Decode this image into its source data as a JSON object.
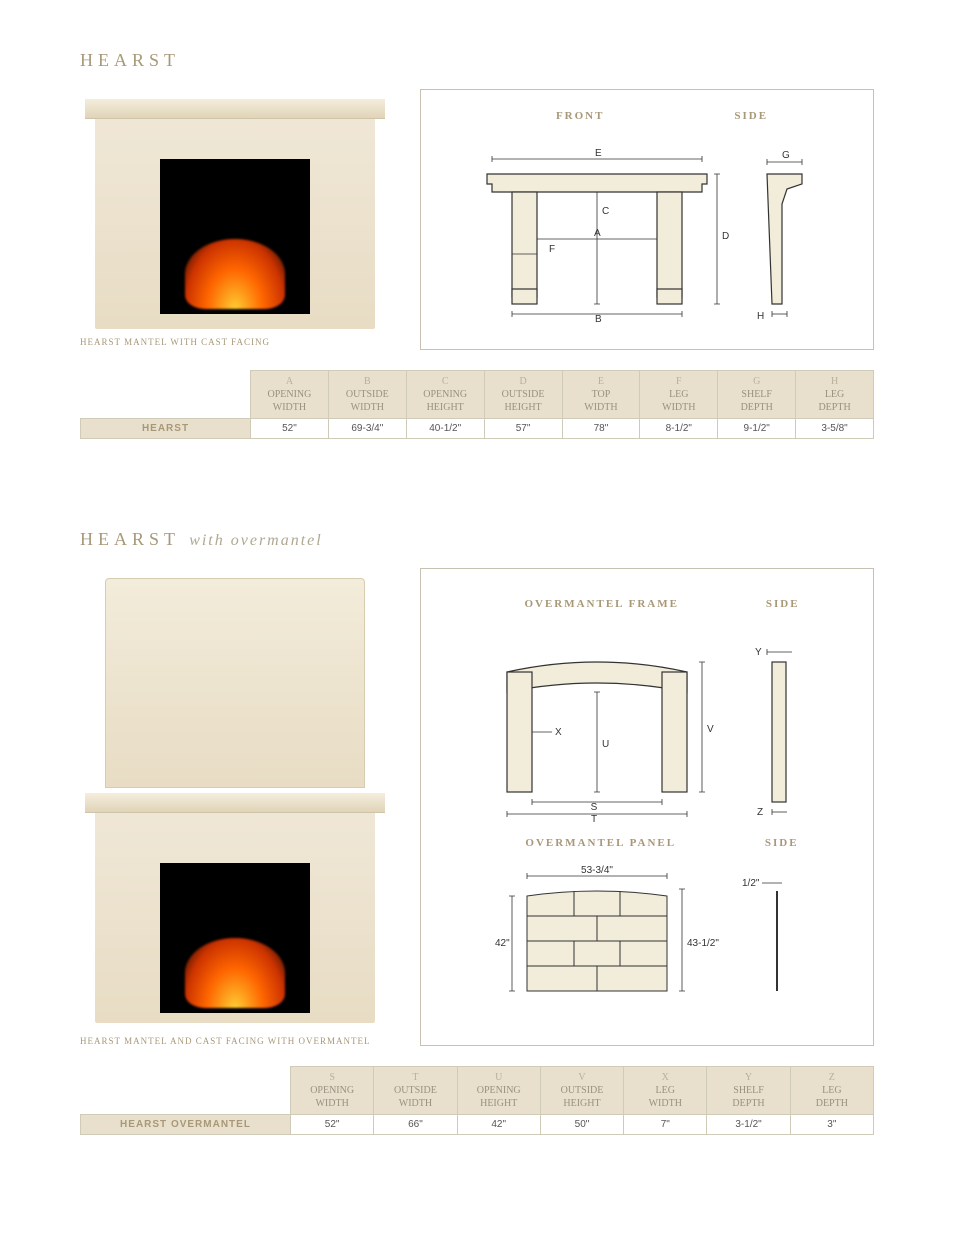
{
  "section1": {
    "title": "HEARST",
    "caption": "HEARST MANTEL WITH CAST FACING",
    "diagram_labels": {
      "front": "FRONT",
      "side": "SIDE"
    },
    "dims": {
      "A": "A",
      "B": "B",
      "C": "C",
      "D": "D",
      "E": "E",
      "F": "F",
      "G": "G",
      "H": "H"
    }
  },
  "table1": {
    "columns": [
      {
        "letter": "A",
        "l1": "OPENING",
        "l2": "WIDTH"
      },
      {
        "letter": "B",
        "l1": "OUTSIDE",
        "l2": "WIDTH"
      },
      {
        "letter": "C",
        "l1": "OPENING",
        "l2": "HEIGHT"
      },
      {
        "letter": "D",
        "l1": "OUTSIDE",
        "l2": "HEIGHT"
      },
      {
        "letter": "E",
        "l1": "TOP",
        "l2": "WIDTH"
      },
      {
        "letter": "F",
        "l1": "LEG",
        "l2": "WIDTH"
      },
      {
        "letter": "G",
        "l1": "SHELF",
        "l2": "DEPTH"
      },
      {
        "letter": "H",
        "l1": "LEG",
        "l2": "DEPTH"
      }
    ],
    "rowlabel": "HEARST",
    "values": [
      "52\"",
      "69-3/4\"",
      "40-1/2\"",
      "57\"",
      "78\"",
      "8-1/2\"",
      "9-1/2\"",
      "3-5/8\""
    ]
  },
  "section2": {
    "title": "HEARST",
    "subtitle": "with overmantel",
    "caption": "HEARST MANTEL AND CAST FACING WITH OVERMANTEL",
    "diagram_labels": {
      "frame": "OVERMANTEL FRAME",
      "side": "SIDE",
      "panel": "OVERMANTEL PANEL"
    },
    "dims": {
      "S": "S",
      "T": "T",
      "U": "U",
      "V": "V",
      "X": "X",
      "Y": "Y",
      "Z": "Z"
    },
    "panel": {
      "w": "53-3/4\"",
      "h": "42\"",
      "oh": "43-1/2\"",
      "depth": "1/2\""
    }
  },
  "table2": {
    "columns": [
      {
        "letter": "S",
        "l1": "OPENING",
        "l2": "WIDTH"
      },
      {
        "letter": "T",
        "l1": "OUTSIDE",
        "l2": "WIDTH"
      },
      {
        "letter": "U",
        "l1": "OPENING",
        "l2": "HEIGHT"
      },
      {
        "letter": "V",
        "l1": "OUTSIDE",
        "l2": "HEIGHT"
      },
      {
        "letter": "X",
        "l1": "LEG",
        "l2": "WIDTH"
      },
      {
        "letter": "Y",
        "l1": "SHELF",
        "l2": "DEPTH"
      },
      {
        "letter": "Z",
        "l1": "LEG",
        "l2": "DEPTH"
      }
    ],
    "rowlabel": "HEARST OVERMANTEL",
    "values": [
      "52\"",
      "66\"",
      "42\"",
      "50\"",
      "7\"",
      "3-1/2\"",
      "3\""
    ]
  },
  "colors": {
    "accent": "#a89878",
    "border": "#c8c0b0",
    "th_bg": "#e8e0cc",
    "stone": "#e8dcc4"
  }
}
